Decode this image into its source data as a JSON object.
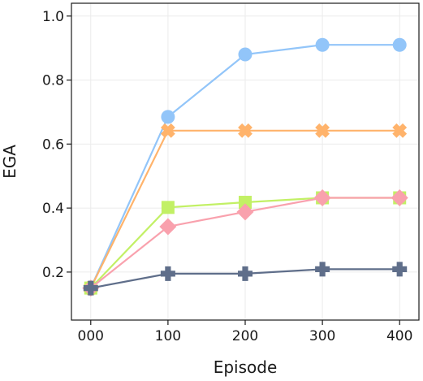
{
  "chart_data": {
    "type": "line",
    "title": "",
    "xlabel": "Episode",
    "ylabel": "EGA",
    "x": [
      0,
      100,
      200,
      300,
      400
    ],
    "x_tick_labels": [
      "000",
      "100",
      "200",
      "300",
      "400"
    ],
    "xlim": [
      -25,
      425
    ],
    "ylim": [
      0.05,
      1.04
    ],
    "y_ticks": [
      0.2,
      0.4,
      0.6,
      0.8,
      1.0
    ],
    "y_tick_labels": [
      "0.2",
      "0.4",
      "0.6",
      "0.8",
      "1.0"
    ],
    "grid": true,
    "legend": "none",
    "series": [
      {
        "color": "#92c5f9",
        "marker": "circle",
        "values": [
          0.15,
          0.685,
          0.88,
          0.91,
          0.91
        ]
      },
      {
        "color": "#ffb36b",
        "marker": "x",
        "values": [
          0.15,
          0.642,
          0.642,
          0.642,
          0.642
        ]
      },
      {
        "color": "#c2f065",
        "marker": "square",
        "values": [
          0.15,
          0.402,
          0.418,
          0.432,
          0.432
        ]
      },
      {
        "color": "#f9a1ad",
        "marker": "diamond",
        "values": [
          0.15,
          0.342,
          0.388,
          0.432,
          0.432
        ]
      },
      {
        "color": "#5f6e8a",
        "marker": "plus",
        "values": [
          0.15,
          0.195,
          0.195,
          0.209,
          0.209
        ]
      }
    ]
  }
}
